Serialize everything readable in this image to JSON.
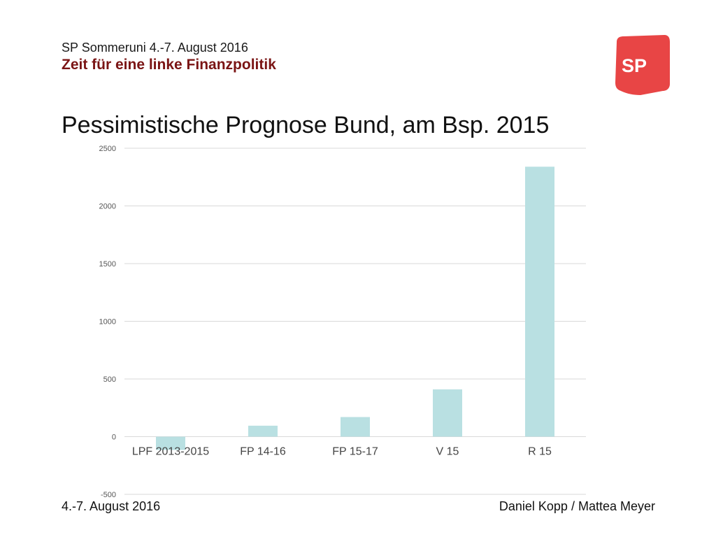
{
  "header": {
    "event": "SP Sommeruni 4.-7. August 2016",
    "subtitle": "Zeit für eine linke Finanzpolitik"
  },
  "logo": {
    "text": "SP",
    "color": "#e84545",
    "icon": "sp-party-logo"
  },
  "slide_title": "Pessimistische Prognose Bund, am Bsp. 2015",
  "chart_data": {
    "type": "bar",
    "title": "",
    "xlabel": "",
    "ylabel": "",
    "categories": [
      "LPF 2013-2015",
      "FP 14-16",
      "FP 15-17",
      "V 15",
      "R 15"
    ],
    "values": [
      -115,
      95,
      170,
      410,
      2340
    ],
    "ylim": [
      -500,
      2500
    ],
    "yticks": [
      "-500",
      "0",
      "500",
      "1000",
      "1500",
      "2000",
      "2500"
    ],
    "grid": true,
    "legend": "none",
    "bar_color": "#b9e0e2",
    "grid_color": "#d9d9d9"
  },
  "footer": {
    "date": "4.-7. August 2016",
    "authors": "Daniel Kopp / Mattea Meyer"
  }
}
